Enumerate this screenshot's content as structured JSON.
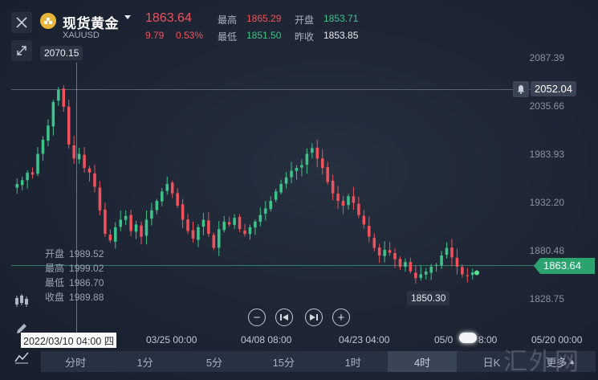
{
  "instrument": {
    "name": "现货黄金",
    "code": "XAUUSD",
    "last_price": "1863.64",
    "change": "9.79",
    "change_pct": "0.53%",
    "stats": {
      "high_label": "最高",
      "high_value": "1865.29",
      "open_label": "开盘",
      "open_value": "1853.71",
      "low_label": "最低",
      "low_value": "1851.50",
      "prev_close_label": "昨收",
      "prev_close_value": "1853.85"
    }
  },
  "colors": {
    "up": "#3cc48a",
    "down": "#f0525b",
    "background": "#1c2332"
  },
  "icons": {
    "close": "close-icon",
    "expand": "expand-icon",
    "coin": "gold-coin-icon",
    "bell": "bell-icon",
    "indicator": "candlestick-indicator-icon",
    "draw": "pencil-icon",
    "chart_style": "line-chart-icon"
  },
  "chart_data": {
    "type": "candlestick",
    "x_tick_labels": [
      "03/25 00:00",
      "04/08 08:00",
      "04/23 04:00",
      "05/0",
      "8:00",
      "05/20 00:00"
    ],
    "y_tick_labels": [
      "2087.39",
      "2035.66",
      "1983.93",
      "1932.20",
      "1880.48",
      "1828.75"
    ],
    "ylim": [
      1812,
      2092
    ],
    "crosshair": {
      "time_label": "2022/03/10 04:00 四",
      "price_label": "2070.15",
      "ohlc": [
        {
          "label": "开盘",
          "value": "1989.52"
        },
        {
          "label": "最高",
          "value": "1999.02"
        },
        {
          "label": "最低",
          "value": "1986.70"
        },
        {
          "label": "收盘",
          "value": "1989.88"
        }
      ]
    },
    "alert_line": {
      "value": 2052.04,
      "label": "2052.04"
    },
    "current_price_line": {
      "value": 1863.64,
      "label": "1863.64"
    },
    "low_marker": {
      "value": 1850.3,
      "label": "1850.30"
    },
    "closes": [
      1958,
      1962,
      1970,
      1968,
      1990,
      2005,
      2020,
      2045,
      2058,
      2040,
      2000,
      1985,
      1990,
      1975,
      1970,
      1955,
      1930,
      1905,
      1898,
      1912,
      1920,
      1924,
      1908,
      1915,
      1902,
      1920,
      1930,
      1940,
      1950,
      1958,
      1948,
      1935,
      1920,
      1908,
      1900,
      1912,
      1920,
      1905,
      1890,
      1910,
      1918,
      1915,
      1922,
      1910,
      1905,
      1912,
      1918,
      1925,
      1932,
      1940,
      1950,
      1958,
      1965,
      1972,
      1975,
      1978,
      1990,
      1996,
      1985,
      1975,
      1960,
      1948,
      1940,
      1935,
      1945,
      1938,
      1925,
      1915,
      1902,
      1890,
      1882,
      1888,
      1885,
      1878,
      1870,
      1875,
      1865,
      1858,
      1862,
      1865,
      1870,
      1872,
      1882,
      1890,
      1880,
      1870,
      1862,
      1860,
      1864
    ]
  },
  "controls": {
    "zoom_out": "−",
    "prev": "⏮",
    "next": "⏭",
    "zoom_in": "+"
  },
  "timeframes": [
    {
      "label": "分时",
      "active": false
    },
    {
      "label": "1分",
      "active": false
    },
    {
      "label": "5分",
      "active": false
    },
    {
      "label": "15分",
      "active": false
    },
    {
      "label": "1时",
      "active": false
    },
    {
      "label": "4时",
      "active": true
    },
    {
      "label": "日K",
      "active": false
    },
    {
      "label": "更多",
      "active": false
    }
  ],
  "watermark": "汇外网"
}
